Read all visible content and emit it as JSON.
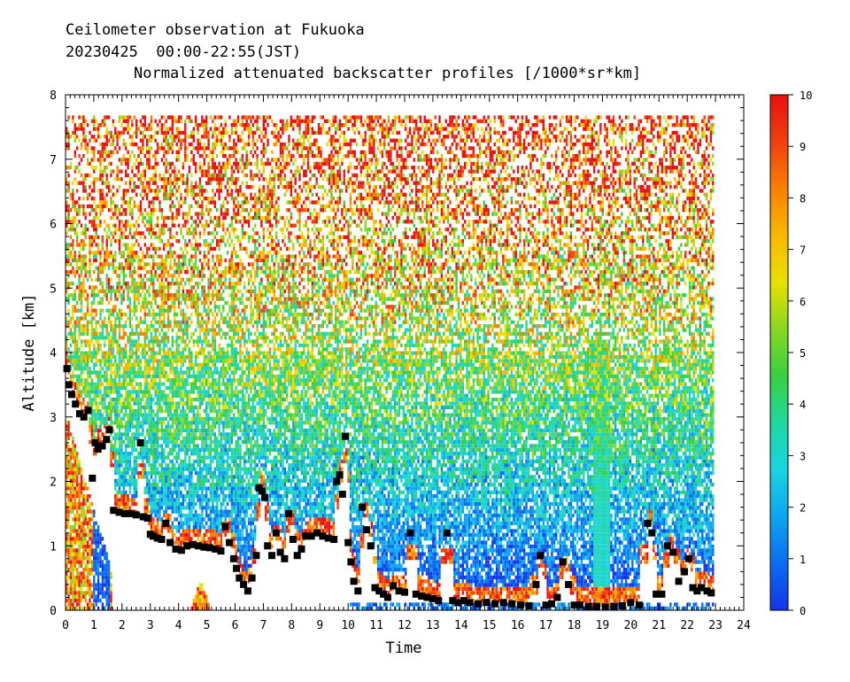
{
  "title": {
    "line1": "Ceilometer observation at Fukuoka",
    "line2": "20230425  00:00-22:55(JST)",
    "line3": "Normalized attenuated backscatter profiles [/1000*sr*km]"
  },
  "chart_data": {
    "type": "heatmap",
    "title": "Normalized attenuated backscatter profiles [/1000*sr*km]",
    "xlabel": "Time",
    "ylabel": "Altitude [km]",
    "xlim": [
      0,
      24
    ],
    "ylim": [
      0,
      8
    ],
    "x_ticks": [
      "0",
      "1",
      "2",
      "3",
      "4",
      "5",
      "6",
      "7",
      "8",
      "9",
      "10",
      "11",
      "12",
      "13",
      "14",
      "15",
      "16",
      "17",
      "18",
      "19",
      "20",
      "21",
      "22",
      "23",
      "24"
    ],
    "y_ticks": [
      "0",
      "1",
      "2",
      "3",
      "4",
      "5",
      "6",
      "7",
      "8"
    ],
    "data_range": {
      "time_end": 22.92,
      "altitude_top": 7.67
    },
    "colorbar": {
      "min": 0,
      "max": 10,
      "ticks": [
        "0",
        "1",
        "2",
        "3",
        "4",
        "5",
        "6",
        "7",
        "8",
        "9",
        "10"
      ],
      "colors": [
        "#1535e8",
        "#0a6df0",
        "#0ea5f0",
        "#18d4e0",
        "#20d8a0",
        "#38d040",
        "#86d820",
        "#e8e000",
        "#f8b800",
        "#f88000",
        "#f04010",
        "#e81010"
      ]
    },
    "cloud_base_markers": [
      {
        "t": 0.05,
        "h": 3.75
      },
      {
        "t": 0.12,
        "h": 3.5
      },
      {
        "t": 0.22,
        "h": 3.35
      },
      {
        "t": 0.35,
        "h": 3.2
      },
      {
        "t": 0.5,
        "h": 3.05
      },
      {
        "t": 0.65,
        "h": 3.0
      },
      {
        "t": 0.8,
        "h": 3.1
      },
      {
        "t": 0.95,
        "h": 2.05
      },
      {
        "t": 1.05,
        "h": 2.6
      },
      {
        "t": 1.15,
        "h": 2.5
      },
      {
        "t": 1.3,
        "h": 2.55
      },
      {
        "t": 1.45,
        "h": 2.65
      },
      {
        "t": 1.55,
        "h": 2.8
      },
      {
        "t": 1.7,
        "h": 1.55
      },
      {
        "t": 1.9,
        "h": 1.52
      },
      {
        "t": 2.1,
        "h": 1.5
      },
      {
        "t": 2.3,
        "h": 1.5
      },
      {
        "t": 2.5,
        "h": 1.48
      },
      {
        "t": 2.65,
        "h": 2.6
      },
      {
        "t": 2.75,
        "h": 1.45
      },
      {
        "t": 2.9,
        "h": 1.43
      },
      {
        "t": 3.0,
        "h": 1.18
      },
      {
        "t": 3.1,
        "h": 1.15
      },
      {
        "t": 3.25,
        "h": 1.12
      },
      {
        "t": 3.4,
        "h": 1.1
      },
      {
        "t": 3.55,
        "h": 1.35
      },
      {
        "t": 3.7,
        "h": 1.05
      },
      {
        "t": 3.9,
        "h": 0.95
      },
      {
        "t": 4.1,
        "h": 0.93
      },
      {
        "t": 4.3,
        "h": 1.0
      },
      {
        "t": 4.5,
        "h": 1.02
      },
      {
        "t": 4.7,
        "h": 1.0
      },
      {
        "t": 4.9,
        "h": 0.98
      },
      {
        "t": 5.1,
        "h": 0.97
      },
      {
        "t": 5.3,
        "h": 0.95
      },
      {
        "t": 5.5,
        "h": 0.92
      },
      {
        "t": 5.65,
        "h": 1.3
      },
      {
        "t": 5.8,
        "h": 1.05
      },
      {
        "t": 5.95,
        "h": 0.8
      },
      {
        "t": 6.05,
        "h": 0.65
      },
      {
        "t": 6.15,
        "h": 0.5
      },
      {
        "t": 6.3,
        "h": 0.4
      },
      {
        "t": 6.45,
        "h": 0.3
      },
      {
        "t": 6.6,
        "h": 0.5
      },
      {
        "t": 6.75,
        "h": 0.85
      },
      {
        "t": 6.85,
        "h": 1.9
      },
      {
        "t": 6.95,
        "h": 1.85
      },
      {
        "t": 7.05,
        "h": 1.75
      },
      {
        "t": 7.15,
        "h": 1.0
      },
      {
        "t": 7.3,
        "h": 0.85
      },
      {
        "t": 7.45,
        "h": 1.2
      },
      {
        "t": 7.6,
        "h": 0.9
      },
      {
        "t": 7.75,
        "h": 0.8
      },
      {
        "t": 7.9,
        "h": 1.5
      },
      {
        "t": 8.05,
        "h": 1.1
      },
      {
        "t": 8.2,
        "h": 0.85
      },
      {
        "t": 8.35,
        "h": 0.95
      },
      {
        "t": 8.5,
        "h": 1.15
      },
      {
        "t": 8.7,
        "h": 1.15
      },
      {
        "t": 8.9,
        "h": 1.2
      },
      {
        "t": 9.1,
        "h": 1.15
      },
      {
        "t": 9.3,
        "h": 1.12
      },
      {
        "t": 9.5,
        "h": 1.1
      },
      {
        "t": 9.6,
        "h": 2.0
      },
      {
        "t": 9.7,
        "h": 2.1
      },
      {
        "t": 9.8,
        "h": 1.8
      },
      {
        "t": 9.9,
        "h": 2.7
      },
      {
        "t": 10.0,
        "h": 1.05
      },
      {
        "t": 10.1,
        "h": 0.75
      },
      {
        "t": 10.2,
        "h": 0.45
      },
      {
        "t": 10.35,
        "h": 0.3
      },
      {
        "t": 10.5,
        "h": 1.6
      },
      {
        "t": 10.65,
        "h": 1.25
      },
      {
        "t": 10.8,
        "h": 1.0
      },
      {
        "t": 10.95,
        "h": 0.35
      },
      {
        "t": 11.1,
        "h": 0.3
      },
      {
        "t": 11.25,
        "h": 0.25
      },
      {
        "t": 11.4,
        "h": 0.2
      },
      {
        "t": 11.6,
        "h": 0.38
      },
      {
        "t": 11.8,
        "h": 0.3
      },
      {
        "t": 12.0,
        "h": 0.28
      },
      {
        "t": 12.2,
        "h": 1.2
      },
      {
        "t": 12.4,
        "h": 0.25
      },
      {
        "t": 12.6,
        "h": 0.22
      },
      {
        "t": 12.8,
        "h": 0.2
      },
      {
        "t": 13.0,
        "h": 0.18
      },
      {
        "t": 13.2,
        "h": 0.15
      },
      {
        "t": 13.5,
        "h": 1.2
      },
      {
        "t": 13.7,
        "h": 0.15
      },
      {
        "t": 13.9,
        "h": 0.12
      },
      {
        "t": 14.1,
        "h": 0.15
      },
      {
        "t": 14.3,
        "h": 0.12
      },
      {
        "t": 14.6,
        "h": 0.1
      },
      {
        "t": 14.9,
        "h": 0.12
      },
      {
        "t": 15.2,
        "h": 0.1
      },
      {
        "t": 15.5,
        "h": 0.12
      },
      {
        "t": 15.8,
        "h": 0.1
      },
      {
        "t": 16.1,
        "h": 0.08
      },
      {
        "t": 16.4,
        "h": 0.07
      },
      {
        "t": 16.65,
        "h": 0.4
      },
      {
        "t": 16.8,
        "h": 0.85
      },
      {
        "t": 17.0,
        "h": 0.08
      },
      {
        "t": 17.2,
        "h": 0.1
      },
      {
        "t": 17.4,
        "h": 0.2
      },
      {
        "t": 17.6,
        "h": 0.75
      },
      {
        "t": 17.8,
        "h": 0.4
      },
      {
        "t": 18.0,
        "h": 0.08
      },
      {
        "t": 18.2,
        "h": 0.08
      },
      {
        "t": 18.5,
        "h": 0.06
      },
      {
        "t": 18.8,
        "h": 0.06
      },
      {
        "t": 19.1,
        "h": 0.05
      },
      {
        "t": 19.4,
        "h": 0.06
      },
      {
        "t": 19.7,
        "h": 0.07
      },
      {
        "t": 20.0,
        "h": 0.12
      },
      {
        "t": 20.3,
        "h": 0.08
      },
      {
        "t": 20.6,
        "h": 1.35
      },
      {
        "t": 20.75,
        "h": 1.2
      },
      {
        "t": 20.9,
        "h": 0.25
      },
      {
        "t": 21.1,
        "h": 0.25
      },
      {
        "t": 21.3,
        "h": 1.0
      },
      {
        "t": 21.5,
        "h": 0.9
      },
      {
        "t": 21.7,
        "h": 0.45
      },
      {
        "t": 21.9,
        "h": 0.6
      },
      {
        "t": 22.05,
        "h": 0.8
      },
      {
        "t": 22.2,
        "h": 0.35
      },
      {
        "t": 22.35,
        "h": 0.3
      },
      {
        "t": 22.5,
        "h": 0.35
      },
      {
        "t": 22.7,
        "h": 0.3
      },
      {
        "t": 22.85,
        "h": 0.27
      }
    ]
  }
}
